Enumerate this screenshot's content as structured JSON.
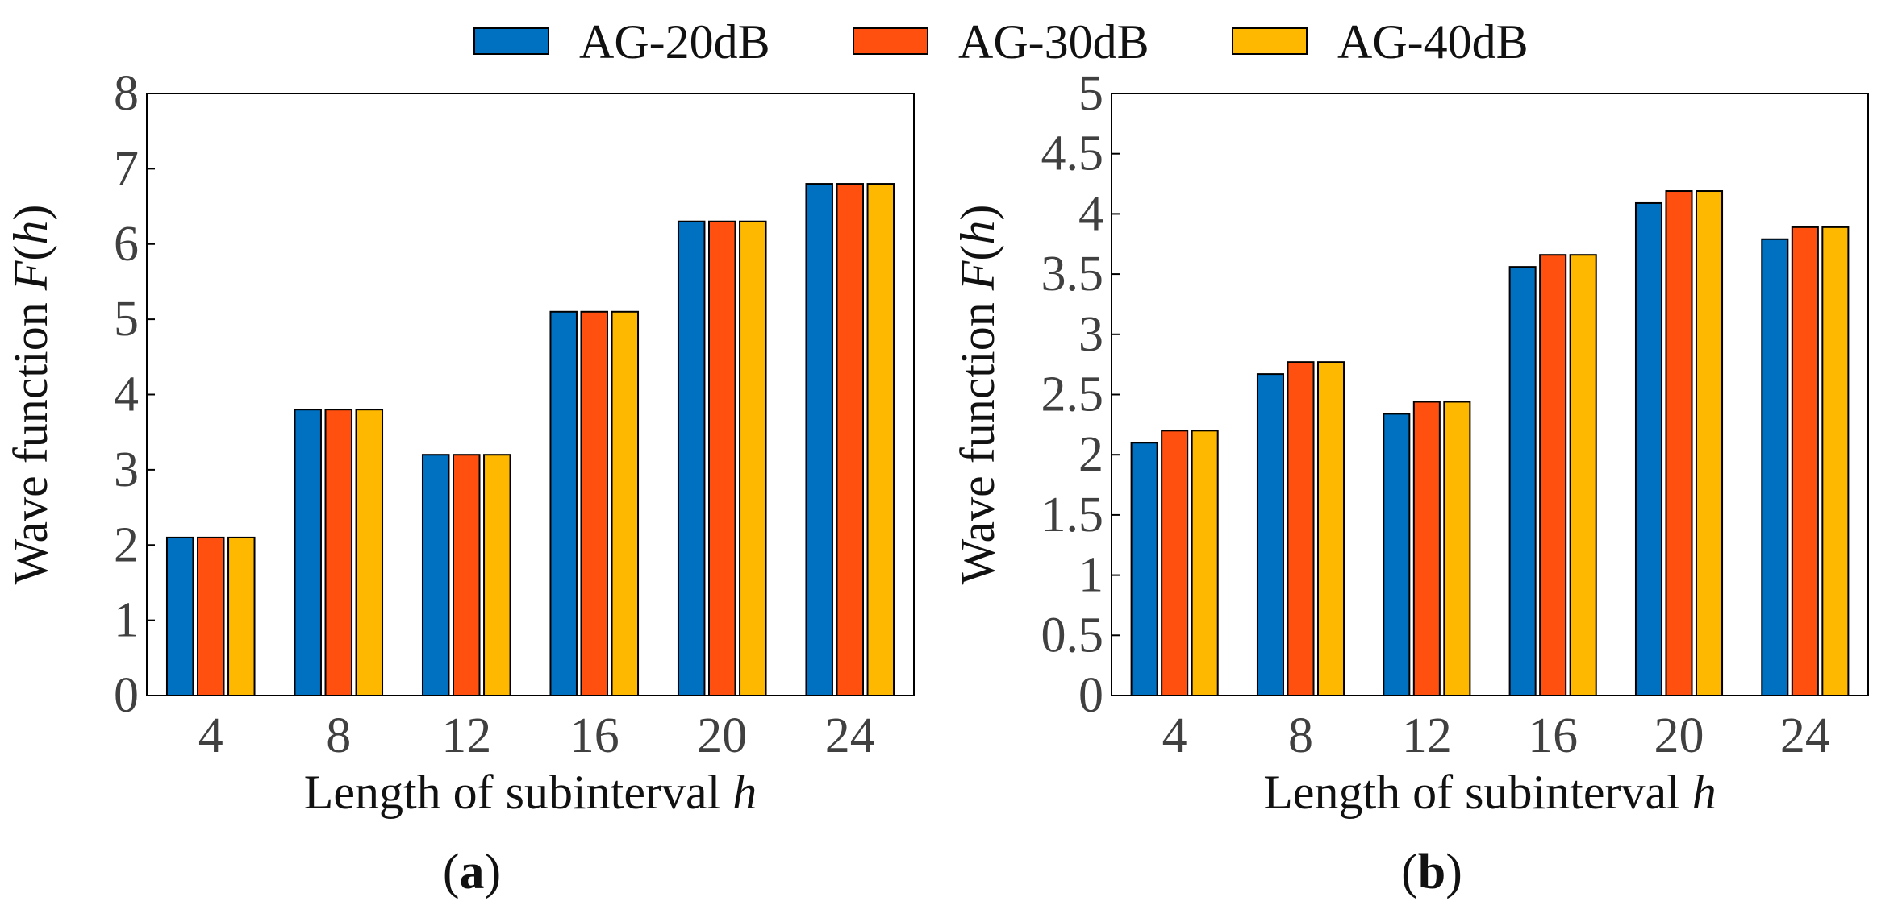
{
  "legend": {
    "entries": [
      {
        "label": "AG-20dB",
        "color": "#0070C0"
      },
      {
        "label": "AG-30dB",
        "color": "#FF5010"
      },
      {
        "label": "AG-40dB",
        "color": "#FFB800"
      }
    ]
  },
  "chart_data": [
    {
      "type": "bar",
      "subtitle": "(a)",
      "subtitle_letter": "a",
      "xlabel": "Length of subinterval h",
      "xlabel_text": "Length of subinterval",
      "xlabel_var": "h",
      "ylabel": "Wave function F(h)",
      "ylabel_text": "Wave function",
      "ylabel_var_f": "F",
      "ylabel_var_h": "h",
      "categories": [
        "4",
        "8",
        "12",
        "16",
        "20",
        "24"
      ],
      "ylim": [
        0,
        8
      ],
      "yticks": [
        "0",
        "1",
        "2",
        "3",
        "4",
        "5",
        "6",
        "7",
        "8"
      ],
      "series": [
        {
          "name": "AG-20dB",
          "values": [
            2.1,
            3.8,
            3.2,
            5.1,
            6.3,
            6.8
          ]
        },
        {
          "name": "AG-30dB",
          "values": [
            2.1,
            3.8,
            3.2,
            5.1,
            6.3,
            6.8
          ]
        },
        {
          "name": "AG-40dB",
          "values": [
            2.1,
            3.8,
            3.2,
            5.1,
            6.3,
            6.8
          ]
        }
      ]
    },
    {
      "type": "bar",
      "subtitle": "(b)",
      "subtitle_letter": "b",
      "xlabel": "Length of subinterval h",
      "xlabel_text": "Length of subinterval",
      "xlabel_var": "h",
      "ylabel": "Wave function F(h)",
      "ylabel_text": "Wave function",
      "ylabel_var_f": "F",
      "ylabel_var_h": "h",
      "categories": [
        "4",
        "8",
        "12",
        "16",
        "20",
        "24"
      ],
      "ylim": [
        0,
        5
      ],
      "yticks": [
        "0",
        "0.5",
        "1",
        "1.5",
        "2",
        "2.5",
        "3",
        "3.5",
        "4",
        "4.5",
        "5"
      ],
      "series": [
        {
          "name": "AG-20dB",
          "values": [
            2.1,
            2.67,
            2.34,
            3.56,
            4.09,
            3.79
          ]
        },
        {
          "name": "AG-30dB",
          "values": [
            2.2,
            2.77,
            2.44,
            3.66,
            4.19,
            3.89
          ]
        },
        {
          "name": "AG-40dB",
          "values": [
            2.2,
            2.77,
            2.44,
            3.66,
            4.19,
            3.89
          ]
        }
      ]
    }
  ]
}
